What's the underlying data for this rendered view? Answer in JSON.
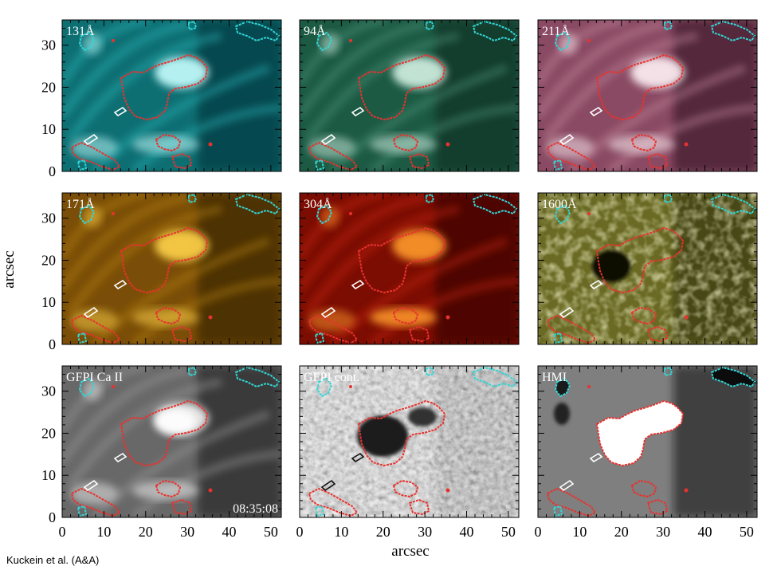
{
  "figure": {
    "xlabel": "arcsec",
    "ylabel": "arcsec",
    "x_ticks": [
      0,
      10,
      20,
      30,
      40,
      50
    ],
    "y_ticks": [
      0,
      10,
      20,
      30
    ],
    "xlim": [
      0,
      52.5
    ],
    "ylim": [
      0,
      36
    ],
    "credit": "Kuckein et al. (A&A)",
    "timestamp": "08:35:08",
    "contour_colors": {
      "umbra": "#e8322e",
      "neg_polarity": "#33d6d6",
      "pos_small": "#ffffff"
    }
  },
  "panels": [
    {
      "label": "131Å",
      "colormap": "teal"
    },
    {
      "label": "94Å",
      "colormap": "green-teal"
    },
    {
      "label": "211Å",
      "colormap": "purple"
    },
    {
      "label": "171Å",
      "colormap": "gold"
    },
    {
      "label": "304Å",
      "colormap": "red"
    },
    {
      "label": "1600Å",
      "colormap": "olive"
    },
    {
      "label": "GFPI Ca II",
      "colormap": "gray"
    },
    {
      "label": "GFPI cont.",
      "colormap": "gray-granulation"
    },
    {
      "label": "HMI",
      "colormap": "gray-magnetogram"
    }
  ],
  "chart_data": {
    "type": "image-grid",
    "rows": 3,
    "cols": 3,
    "xlabel": "arcsec",
    "ylabel": "arcsec",
    "xlim": [
      0,
      52.5
    ],
    "ylim": [
      0,
      36
    ],
    "x_ticks": [
      0,
      10,
      20,
      30,
      40,
      50
    ],
    "y_ticks": [
      0,
      10,
      20,
      30
    ],
    "panel_labels": [
      "131Å",
      "94Å",
      "211Å",
      "171Å",
      "304Å",
      "1600Å",
      "GFPI Ca II",
      "GFPI cont.",
      "HMI"
    ],
    "annotation": "08:35:08"
  }
}
